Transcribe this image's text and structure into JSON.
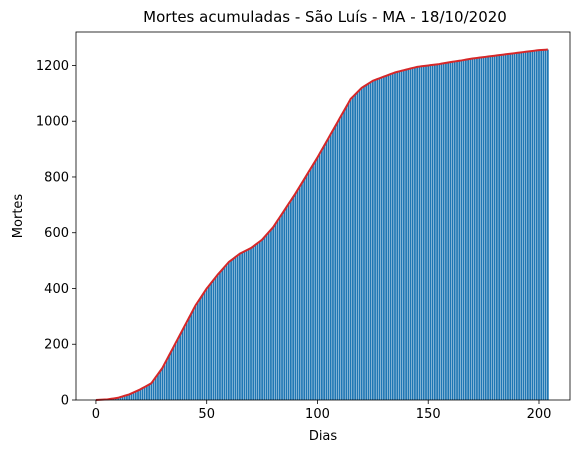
{
  "chart_data": {
    "type": "bar",
    "title": "Mortes acumuladas - São Luís - MA - 18/10/2020",
    "xlabel": "Dias",
    "ylabel": "Mortes",
    "xlim": [
      -9,
      214
    ],
    "ylim": [
      0,
      1320
    ],
    "xticks": [
      "0",
      "50",
      "100",
      "150",
      "200"
    ],
    "yticks": [
      "0",
      "200",
      "400",
      "600",
      "800",
      "1000",
      "1200"
    ],
    "grid": false,
    "bar_color": "#1f77b4",
    "line_color": "#d62728",
    "x": [
      0,
      5,
      10,
      15,
      20,
      25,
      30,
      35,
      40,
      45,
      50,
      55,
      60,
      65,
      70,
      75,
      80,
      85,
      90,
      95,
      100,
      105,
      110,
      115,
      120,
      125,
      130,
      135,
      140,
      145,
      150,
      155,
      160,
      165,
      170,
      175,
      180,
      185,
      190,
      195,
      200,
      204
    ],
    "series": [
      {
        "kind": "bar",
        "values": [
          0,
          2,
          8,
          20,
          38,
          60,
          115,
          190,
          265,
          340,
          400,
          450,
          495,
          525,
          545,
          575,
          620,
          680,
          740,
          805,
          870,
          940,
          1010,
          1080,
          1120,
          1145,
          1160,
          1175,
          1185,
          1195,
          1200,
          1205,
          1212,
          1218,
          1225,
          1230,
          1235,
          1240,
          1245,
          1250,
          1255,
          1257
        ]
      },
      {
        "kind": "line",
        "values": [
          0,
          2,
          8,
          20,
          38,
          60,
          115,
          190,
          265,
          340,
          400,
          450,
          495,
          525,
          545,
          575,
          620,
          680,
          740,
          805,
          870,
          940,
          1010,
          1080,
          1120,
          1145,
          1160,
          1175,
          1185,
          1195,
          1200,
          1205,
          1212,
          1218,
          1225,
          1230,
          1235,
          1240,
          1245,
          1250,
          1255,
          1257
        ]
      }
    ]
  }
}
